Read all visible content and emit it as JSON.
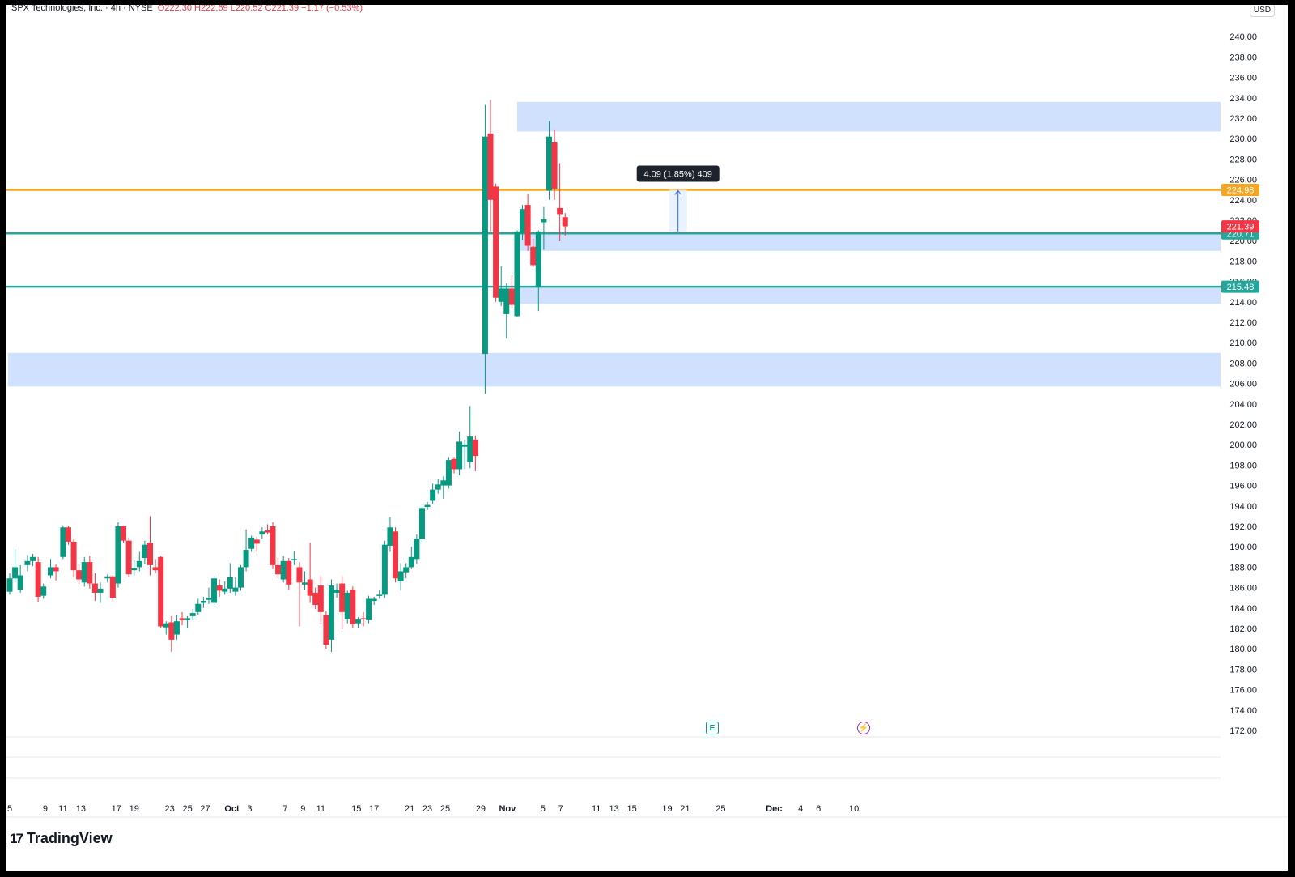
{
  "header": {
    "symbol_line": "SPX Technologies, Inc. · 4h · NYSE",
    "ohlc": "O222.30  H222.69  L220.52  C221.39  −1.17 (−0.53%)",
    "currency": "USD"
  },
  "brand": {
    "name": "TradingView"
  },
  "events": {
    "earnings_label": "E",
    "dividend_label": "⚡"
  },
  "chart_data": {
    "type": "candlestick",
    "interval": "4h",
    "ylim": [
      170,
      241
    ],
    "y_ticks": [
      "172.00",
      "174.00",
      "176.00",
      "178.00",
      "180.00",
      "182.00",
      "184.00",
      "186.00",
      "188.00",
      "190.00",
      "192.00",
      "194.00",
      "196.00",
      "198.00",
      "200.00",
      "202.00",
      "204.00",
      "206.00",
      "208.00",
      "210.00",
      "212.00",
      "214.00",
      "216.00",
      "218.00",
      "220.00",
      "222.00",
      "224.00",
      "226.00",
      "228.00",
      "230.00",
      "232.00",
      "234.00",
      "236.00",
      "238.00",
      "240.00"
    ],
    "x_ticks": [
      {
        "label": "5",
        "day": 0
      },
      {
        "label": "9",
        "day": 4
      },
      {
        "label": "11",
        "day": 6
      },
      {
        "label": "13",
        "day": 8
      },
      {
        "label": "17",
        "day": 12
      },
      {
        "label": "19",
        "day": 14
      },
      {
        "label": "23",
        "day": 18
      },
      {
        "label": "25",
        "day": 20
      },
      {
        "label": "27",
        "day": 22
      },
      {
        "label": "Oct",
        "day": 25,
        "bold": true
      },
      {
        "label": "3",
        "day": 27
      },
      {
        "label": "7",
        "day": 31
      },
      {
        "label": "9",
        "day": 33
      },
      {
        "label": "11",
        "day": 35
      },
      {
        "label": "15",
        "day": 39
      },
      {
        "label": "17",
        "day": 41
      },
      {
        "label": "21",
        "day": 45
      },
      {
        "label": "23",
        "day": 47
      },
      {
        "label": "25",
        "day": 49
      },
      {
        "label": "29",
        "day": 53
      },
      {
        "label": "Nov",
        "day": 56,
        "bold": true
      },
      {
        "label": "5",
        "day": 60
      },
      {
        "label": "7",
        "day": 62
      },
      {
        "label": "11",
        "day": 66
      },
      {
        "label": "13",
        "day": 68
      },
      {
        "label": "15",
        "day": 70
      },
      {
        "label": "19",
        "day": 74
      },
      {
        "label": "21",
        "day": 76
      },
      {
        "label": "25",
        "day": 80
      },
      {
        "label": "Dec",
        "day": 86,
        "bold": true
      },
      {
        "label": "4",
        "day": 89
      },
      {
        "label": "6",
        "day": 91
      },
      {
        "label": "10",
        "day": 95
      }
    ],
    "zones": [
      {
        "from": 230.7,
        "to": 233.6,
        "start_day": 57.1
      },
      {
        "from": 219.0,
        "to": 220.7,
        "start_day": 57.4
      },
      {
        "from": 213.8,
        "to": 215.4,
        "start_day": 56.9
      },
      {
        "from": 205.7,
        "to": 209.0,
        "start_day": -0.2
      }
    ],
    "levels": [
      {
        "price": 224.98,
        "label": "224.98",
        "color": "#f5a623"
      },
      {
        "price": 220.71,
        "label": "220.71",
        "color": "#26a69a"
      },
      {
        "price": 215.48,
        "label": "215.48",
        "color": "#26a69a"
      }
    ],
    "last_price": {
      "price": 221.39,
      "label": "221.39",
      "color": "#f23645"
    },
    "measure": {
      "from": 220.9,
      "to": 224.98,
      "start_day": 74.2,
      "end_day": 76.2,
      "label": "4.09 (1.85%) 409"
    },
    "candles": [
      {
        "day": 0.0,
        "o": 185.6,
        "h": 187.4,
        "l": 185.3,
        "c": 186.9
      },
      {
        "day": 0.6,
        "o": 186.9,
        "h": 189.8,
        "l": 186.5,
        "c": 188.0
      },
      {
        "day": 1.2,
        "o": 185.8,
        "h": 188.2,
        "l": 185.5,
        "c": 187.2
      },
      {
        "day": 2.0,
        "o": 188.2,
        "h": 189.2,
        "l": 187.6,
        "c": 188.6
      },
      {
        "day": 2.6,
        "o": 188.6,
        "h": 189.3,
        "l": 188.1,
        "c": 189.0
      },
      {
        "day": 3.2,
        "o": 188.5,
        "h": 189.0,
        "l": 184.6,
        "c": 185.1
      },
      {
        "day": 3.8,
        "o": 185.2,
        "h": 186.4,
        "l": 184.9,
        "c": 186.1
      },
      {
        "day": 4.6,
        "o": 187.2,
        "h": 188.8,
        "l": 186.9,
        "c": 188.0
      },
      {
        "day": 5.2,
        "o": 188.0,
        "h": 188.3,
        "l": 186.7,
        "c": 187.6
      },
      {
        "day": 6.0,
        "o": 189.0,
        "h": 192.1,
        "l": 188.8,
        "c": 191.9
      },
      {
        "day": 6.6,
        "o": 191.9,
        "h": 192.0,
        "l": 190.2,
        "c": 190.5
      },
      {
        "day": 7.2,
        "o": 190.5,
        "h": 190.8,
        "l": 187.0,
        "c": 187.7
      },
      {
        "day": 7.8,
        "o": 187.7,
        "h": 188.3,
        "l": 186.4,
        "c": 186.8
      },
      {
        "day": 8.4,
        "o": 186.5,
        "h": 189.0,
        "l": 186.1,
        "c": 188.5
      },
      {
        "day": 9.0,
        "o": 188.5,
        "h": 189.1,
        "l": 185.9,
        "c": 186.4
      },
      {
        "day": 9.6,
        "o": 186.4,
        "h": 187.4,
        "l": 184.7,
        "c": 185.5
      },
      {
        "day": 10.2,
        "o": 185.5,
        "h": 186.5,
        "l": 184.5,
        "c": 185.9
      },
      {
        "day": 11.0,
        "o": 186.9,
        "h": 187.3,
        "l": 186.5,
        "c": 187.1
      },
      {
        "day": 11.6,
        "o": 187.1,
        "h": 187.2,
        "l": 184.6,
        "c": 185.0
      },
      {
        "day": 12.2,
        "o": 186.4,
        "h": 192.4,
        "l": 186.0,
        "c": 192.0
      },
      {
        "day": 12.8,
        "o": 192.0,
        "h": 192.1,
        "l": 190.4,
        "c": 190.6
      },
      {
        "day": 13.4,
        "o": 190.6,
        "h": 190.9,
        "l": 187.0,
        "c": 187.3
      },
      {
        "day": 14.0,
        "o": 187.7,
        "h": 188.7,
        "l": 187.2,
        "c": 187.9
      },
      {
        "day": 14.6,
        "o": 188.0,
        "h": 189.5,
        "l": 187.6,
        "c": 188.6
      },
      {
        "day": 15.2,
        "o": 188.9,
        "h": 190.6,
        "l": 188.3,
        "c": 190.2
      },
      {
        "day": 15.8,
        "o": 190.4,
        "h": 193.0,
        "l": 187.2,
        "c": 188.2
      },
      {
        "day": 16.4,
        "o": 188.0,
        "h": 188.8,
        "l": 187.4,
        "c": 187.7
      },
      {
        "day": 17.0,
        "o": 189.0,
        "h": 189.1,
        "l": 182.0,
        "c": 182.2
      },
      {
        "day": 17.6,
        "o": 182.1,
        "h": 182.7,
        "l": 181.4,
        "c": 182.5
      },
      {
        "day": 18.2,
        "o": 182.6,
        "h": 183.2,
        "l": 179.7,
        "c": 180.9
      },
      {
        "day": 18.8,
        "o": 181.4,
        "h": 183.3,
        "l": 180.9,
        "c": 182.7
      },
      {
        "day": 19.4,
        "o": 183.0,
        "h": 183.6,
        "l": 182.3,
        "c": 182.8
      },
      {
        "day": 20.0,
        "o": 182.8,
        "h": 183.2,
        "l": 182.0,
        "c": 183.0
      },
      {
        "day": 20.6,
        "o": 183.2,
        "h": 183.9,
        "l": 182.8,
        "c": 183.5
      },
      {
        "day": 21.2,
        "o": 183.6,
        "h": 184.9,
        "l": 183.3,
        "c": 184.4
      },
      {
        "day": 21.8,
        "o": 184.5,
        "h": 185.1,
        "l": 184.0,
        "c": 184.7
      },
      {
        "day": 22.4,
        "o": 184.8,
        "h": 186.0,
        "l": 184.4,
        "c": 185.0
      },
      {
        "day": 23.0,
        "o": 184.5,
        "h": 187.2,
        "l": 184.3,
        "c": 186.9
      },
      {
        "day": 23.6,
        "o": 186.2,
        "h": 186.8,
        "l": 185.1,
        "c": 185.7
      },
      {
        "day": 24.2,
        "o": 185.6,
        "h": 186.6,
        "l": 185.3,
        "c": 185.9
      },
      {
        "day": 24.8,
        "o": 185.9,
        "h": 188.4,
        "l": 185.5,
        "c": 187.0
      },
      {
        "day": 25.4,
        "o": 185.6,
        "h": 187.0,
        "l": 185.2,
        "c": 186.0
      },
      {
        "day": 26.0,
        "o": 186.0,
        "h": 188.2,
        "l": 185.7,
        "c": 188.0
      },
      {
        "day": 26.6,
        "o": 188.0,
        "h": 191.7,
        "l": 187.6,
        "c": 189.7
      },
      {
        "day": 27.2,
        "o": 189.8,
        "h": 191.1,
        "l": 189.5,
        "c": 190.9
      },
      {
        "day": 27.8,
        "o": 190.7,
        "h": 191.0,
        "l": 189.5,
        "c": 190.3
      },
      {
        "day": 28.4,
        "o": 191.2,
        "h": 191.9,
        "l": 190.8,
        "c": 191.5
      },
      {
        "day": 29.0,
        "o": 191.6,
        "h": 192.2,
        "l": 191.2,
        "c": 191.4
      },
      {
        "day": 29.6,
        "o": 192.0,
        "h": 192.4,
        "l": 187.8,
        "c": 188.2
      },
      {
        "day": 30.2,
        "o": 188.2,
        "h": 188.9,
        "l": 186.9,
        "c": 187.3
      },
      {
        "day": 30.8,
        "o": 186.8,
        "h": 189.1,
        "l": 186.5,
        "c": 188.6
      },
      {
        "day": 31.4,
        "o": 188.6,
        "h": 188.9,
        "l": 185.8,
        "c": 186.3
      },
      {
        "day": 32.0,
        "o": 188.8,
        "h": 189.6,
        "l": 188.2,
        "c": 188.8
      },
      {
        "day": 32.6,
        "o": 188.0,
        "h": 188.5,
        "l": 182.2,
        "c": 186.5
      },
      {
        "day": 33.2,
        "o": 186.3,
        "h": 187.6,
        "l": 185.8,
        "c": 186.5
      },
      {
        "day": 33.8,
        "o": 186.8,
        "h": 190.4,
        "l": 184.5,
        "c": 185.2
      },
      {
        "day": 34.4,
        "o": 185.5,
        "h": 186.0,
        "l": 183.9,
        "c": 184.3
      },
      {
        "day": 35.0,
        "o": 186.2,
        "h": 187.1,
        "l": 182.4,
        "c": 183.6
      },
      {
        "day": 35.6,
        "o": 183.3,
        "h": 183.7,
        "l": 180.0,
        "c": 180.4
      },
      {
        "day": 36.2,
        "o": 180.9,
        "h": 186.8,
        "l": 179.7,
        "c": 186.2
      },
      {
        "day": 36.8,
        "o": 185.5,
        "h": 186.4,
        "l": 185.0,
        "c": 185.8
      },
      {
        "day": 37.4,
        "o": 186.4,
        "h": 187.1,
        "l": 181.9,
        "c": 183.6
      },
      {
        "day": 38.0,
        "o": 182.9,
        "h": 185.7,
        "l": 182.5,
        "c": 185.5
      },
      {
        "day": 38.6,
        "o": 185.8,
        "h": 186.1,
        "l": 182.0,
        "c": 182.4
      },
      {
        "day": 39.2,
        "o": 182.5,
        "h": 183.1,
        "l": 182.0,
        "c": 182.9
      },
      {
        "day": 39.8,
        "o": 183.0,
        "h": 183.6,
        "l": 182.2,
        "c": 182.9
      },
      {
        "day": 40.4,
        "o": 182.8,
        "h": 185.2,
        "l": 182.5,
        "c": 184.9
      },
      {
        "day": 41.0,
        "o": 184.7,
        "h": 185.1,
        "l": 184.3,
        "c": 184.9
      },
      {
        "day": 41.6,
        "o": 185.2,
        "h": 185.8,
        "l": 184.9,
        "c": 185.3
      },
      {
        "day": 42.2,
        "o": 185.3,
        "h": 190.6,
        "l": 185.0,
        "c": 190.2
      },
      {
        "day": 42.8,
        "o": 190.1,
        "h": 192.9,
        "l": 189.5,
        "c": 191.9
      },
      {
        "day": 43.4,
        "o": 191.5,
        "h": 191.9,
        "l": 186.5,
        "c": 186.9
      },
      {
        "day": 44.0,
        "o": 186.6,
        "h": 188.4,
        "l": 185.7,
        "c": 187.6
      },
      {
        "day": 44.6,
        "o": 187.5,
        "h": 188.4,
        "l": 186.9,
        "c": 188.0
      },
      {
        "day": 45.2,
        "o": 188.0,
        "h": 190.0,
        "l": 187.8,
        "c": 189.0
      },
      {
        "day": 45.8,
        "o": 188.8,
        "h": 191.2,
        "l": 188.3,
        "c": 190.8
      },
      {
        "day": 46.4,
        "o": 190.8,
        "h": 194.1,
        "l": 190.5,
        "c": 193.8
      },
      {
        "day": 47.0,
        "o": 193.9,
        "h": 194.4,
        "l": 193.6,
        "c": 194.1
      },
      {
        "day": 47.6,
        "o": 194.5,
        "h": 196.2,
        "l": 194.2,
        "c": 195.6
      },
      {
        "day": 48.2,
        "o": 195.6,
        "h": 196.6,
        "l": 195.2,
        "c": 196.1
      },
      {
        "day": 48.8,
        "o": 196.0,
        "h": 196.9,
        "l": 194.7,
        "c": 196.5
      },
      {
        "day": 49.4,
        "o": 196.0,
        "h": 198.8,
        "l": 195.7,
        "c": 198.5
      },
      {
        "day": 50.0,
        "o": 198.6,
        "h": 198.8,
        "l": 197.2,
        "c": 197.6
      },
      {
        "day": 50.6,
        "o": 197.6,
        "h": 201.3,
        "l": 197.0,
        "c": 200.3
      },
      {
        "day": 51.2,
        "o": 199.8,
        "h": 200.5,
        "l": 197.6,
        "c": 200.0
      },
      {
        "day": 51.8,
        "o": 198.3,
        "h": 203.8,
        "l": 197.7,
        "c": 200.8
      },
      {
        "day": 52.4,
        "o": 200.5,
        "h": 200.9,
        "l": 197.4,
        "c": 198.9
      },
      {
        "day": 53.5,
        "o": 208.9,
        "h": 233.3,
        "l": 205.0,
        "c": 230.2
      },
      {
        "day": 54.1,
        "o": 230.5,
        "h": 233.8,
        "l": 220.9,
        "c": 224.0
      },
      {
        "day": 54.7,
        "o": 225.3,
        "h": 225.6,
        "l": 214.0,
        "c": 214.4
      },
      {
        "day": 55.3,
        "o": 214.0,
        "h": 217.5,
        "l": 213.6,
        "c": 215.3
      },
      {
        "day": 55.9,
        "o": 212.8,
        "h": 215.8,
        "l": 210.4,
        "c": 215.3
      },
      {
        "day": 56.5,
        "o": 215.3,
        "h": 216.6,
        "l": 213.4,
        "c": 213.7
      },
      {
        "day": 57.1,
        "o": 212.6,
        "h": 221.0,
        "l": 212.5,
        "c": 220.9
      },
      {
        "day": 57.7,
        "o": 220.7,
        "h": 223.5,
        "l": 220.1,
        "c": 223.1
      },
      {
        "day": 58.3,
        "o": 223.5,
        "h": 224.6,
        "l": 219.0,
        "c": 219.5
      },
      {
        "day": 58.9,
        "o": 219.4,
        "h": 220.2,
        "l": 217.4,
        "c": 217.6
      },
      {
        "day": 59.5,
        "o": 215.5,
        "h": 221.0,
        "l": 213.1,
        "c": 220.9
      },
      {
        "day": 60.1,
        "o": 221.8,
        "h": 223.3,
        "l": 219.1,
        "c": 222.1
      },
      {
        "day": 60.7,
        "o": 224.9,
        "h": 231.7,
        "l": 224.0,
        "c": 230.2
      },
      {
        "day": 61.3,
        "o": 229.7,
        "h": 230.9,
        "l": 224.0,
        "c": 225.1
      },
      {
        "day": 61.9,
        "o": 223.2,
        "h": 227.6,
        "l": 220.0,
        "c": 222.6
      },
      {
        "day": 62.5,
        "o": 222.3,
        "h": 222.7,
        "l": 220.5,
        "c": 221.4
      }
    ]
  }
}
